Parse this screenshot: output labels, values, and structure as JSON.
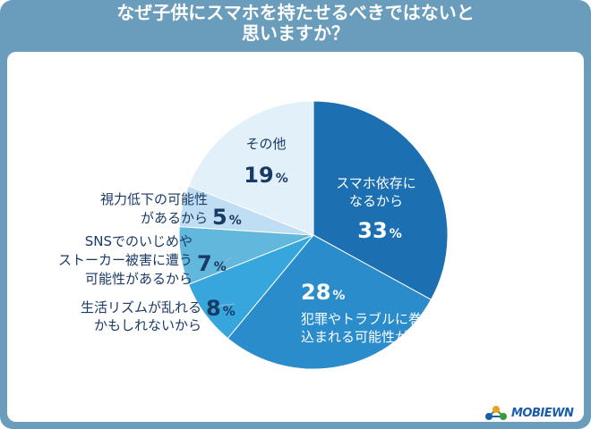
{
  "title_line1": "なぜ子供にスマホを持たせるべきではないと",
  "title_line2": "思いますか？",
  "logo_text": "MOBIEWN",
  "chart_data": {
    "type": "pie",
    "title": "なぜ子供にスマホを持たせるべきではないと思いますか？",
    "percent_suffix": "%",
    "start": "12 o'clock",
    "direction": "clockwise",
    "slices": [
      {
        "label_lines": [
          "スマホ依存に",
          "なるから"
        ],
        "value": 33,
        "value_text": "33",
        "color": "#1c6fb0"
      },
      {
        "label_lines": [
          "犯罪やトラブルに巻き",
          "込まれる可能性があるから"
        ],
        "value": 28,
        "value_text": "28",
        "color": "#2a8ccb"
      },
      {
        "label_lines": [
          "生活リズムが乱れる",
          "かもしれないから"
        ],
        "value": 8,
        "value_text": "8",
        "color": "#36a6dd"
      },
      {
        "label_lines": [
          "SNSでのいじめや",
          "ストーカー被害に遭う",
          "可能性があるから"
        ],
        "value": 7,
        "value_text": "7",
        "color": "#62b8dc"
      },
      {
        "label_lines": [
          "視力低下の可能性",
          "があるから"
        ],
        "value": 5,
        "value_text": "5",
        "color": "#c0def3"
      },
      {
        "label_lines": [
          "その他"
        ],
        "value": 19,
        "value_text": "19",
        "color": "#e2f0fa"
      }
    ]
  }
}
